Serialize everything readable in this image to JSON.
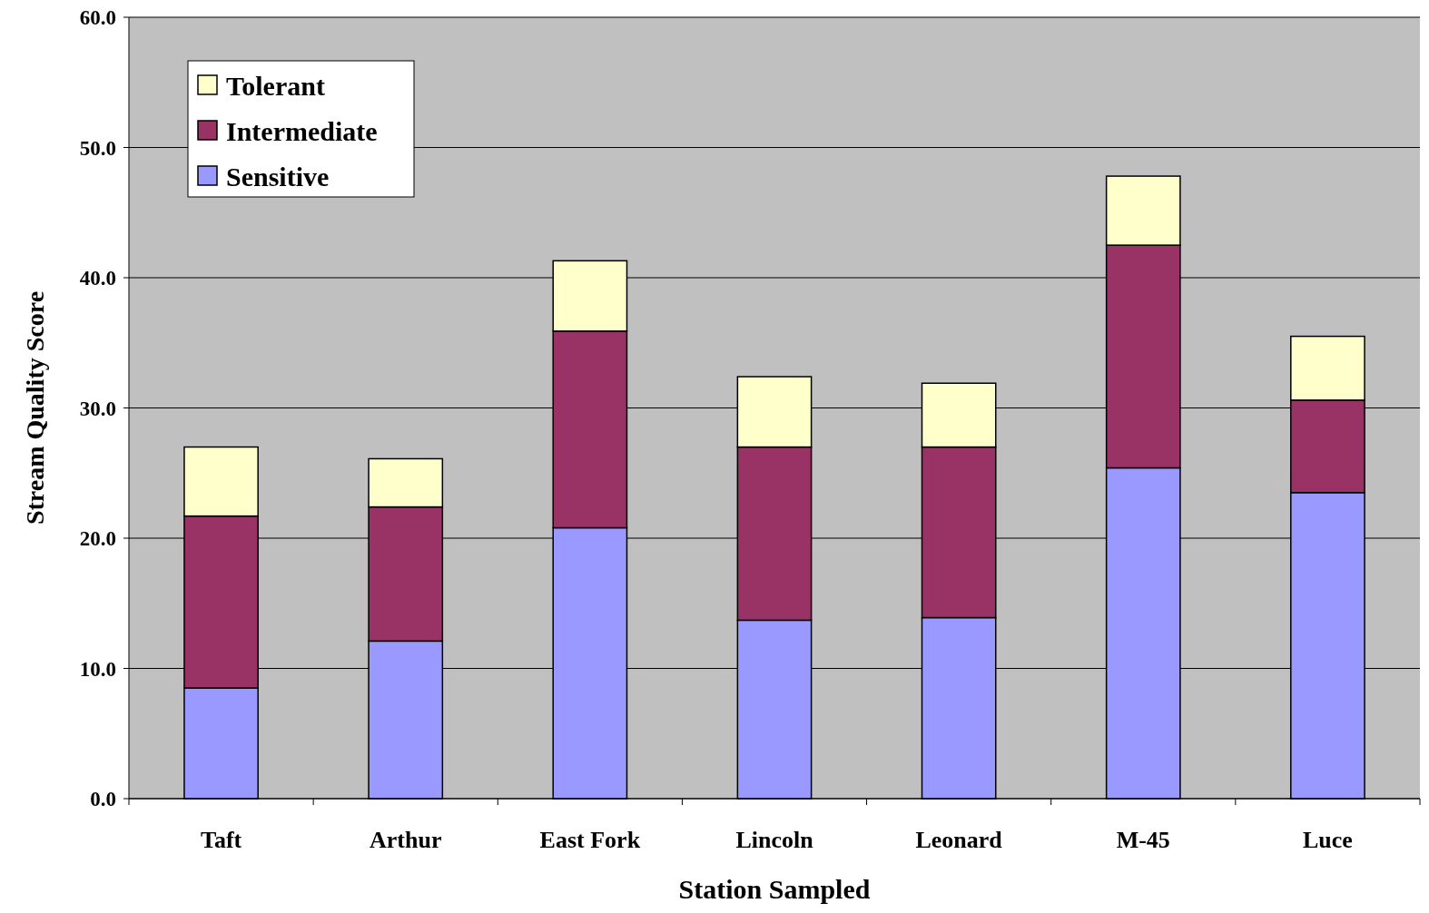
{
  "chart_data": {
    "type": "bar",
    "stacked": true,
    "xlabel": "Station Sampled",
    "ylabel": "Stream Quality Score",
    "categories": [
      "Taft",
      "Arthur",
      "East Fork",
      "Lincoln",
      "Leonard",
      "M-45",
      "Luce"
    ],
    "series": [
      {
        "name": "Sensitive",
        "color": "#9999ff",
        "values": [
          8.5,
          12.1,
          20.8,
          13.7,
          13.9,
          25.4,
          23.5
        ]
      },
      {
        "name": "Intermediate",
        "color": "#993366",
        "values": [
          13.2,
          10.3,
          15.1,
          13.3,
          13.1,
          17.1,
          7.1
        ]
      },
      {
        "name": "Tolerant",
        "color": "#ffffcc",
        "values": [
          5.3,
          3.7,
          5.4,
          5.4,
          4.9,
          5.3,
          4.9
        ]
      }
    ],
    "ylim": [
      0,
      60
    ],
    "yticks": [
      {
        "value": 0,
        "label": "0.0"
      },
      {
        "value": 10,
        "label": "10.0"
      },
      {
        "value": 20,
        "label": "20.0"
      },
      {
        "value": 30,
        "label": "30.0"
      },
      {
        "value": 40,
        "label": "40.0"
      },
      {
        "value": 50,
        "label": "50.0"
      },
      {
        "value": 60,
        "label": "60.0"
      }
    ],
    "grid": "y",
    "legend": "top left"
  }
}
